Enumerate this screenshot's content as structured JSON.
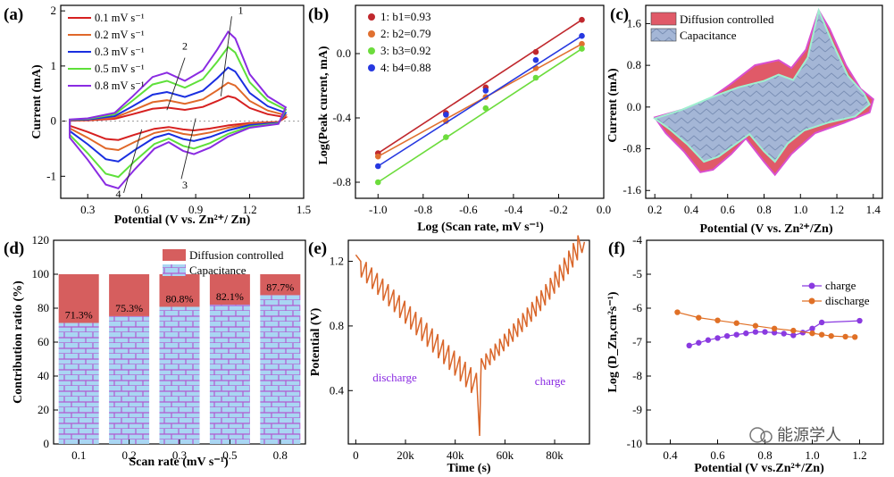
{
  "chart_data": [
    {
      "panel_label": "(a)",
      "type": "line",
      "xlabel": "Potential (V vs. Zn²⁺/ Zn)",
      "ylabel": "Current (mA)",
      "xlim": [
        0.15,
        1.5
      ],
      "ylim": [
        -1.4,
        2.1
      ],
      "x_ticks": [
        "0.3",
        "0.6",
        "0.9",
        "1.2",
        "1.5"
      ],
      "y_ticks": [
        "-1",
        "0",
        "1",
        "2"
      ],
      "legend": "top-left",
      "series": [
        {
          "name": "0.1 mV s⁻¹",
          "color": "#d62020",
          "scale": 0.28
        },
        {
          "name": "0.2 mV s⁻¹",
          "color": "#e0682a",
          "scale": 0.43
        },
        {
          "name": "0.3 mV s⁻¹",
          "color": "#1a2fe0",
          "scale": 0.6
        },
        {
          "name": "0.5 mV s⁻¹",
          "color": "#5ee03a",
          "scale": 0.83
        },
        {
          "name": "0.8 mV s⁻¹",
          "color": "#8a2be2",
          "scale": 1.0
        }
      ],
      "peak_labels": [
        "1",
        "2",
        "3",
        "4"
      ]
    },
    {
      "panel_label": "(b)",
      "type": "scatter",
      "xlabel": "Log (Scan rate, mV s⁻¹)",
      "ylabel": "Log(Peak curent, mA)",
      "xlim": [
        -1.1,
        0.0
      ],
      "ylim": [
        -0.9,
        0.3
      ],
      "x_ticks": [
        "-1.0",
        "-0.8",
        "-0.6",
        "-0.4",
        "-0.2",
        "0.0"
      ],
      "y_ticks": [
        "-0.8",
        "-0.4",
        "0.0"
      ],
      "legend": "top-left",
      "x": [
        -1.0,
        -0.699,
        -0.523,
        -0.301,
        -0.097
      ],
      "series": [
        {
          "name": "1: b1=0.93",
          "color": "#c0282d",
          "y": [
            -0.62,
            -0.37,
            -0.21,
            0.01,
            0.21
          ]
        },
        {
          "name": "2: b2=0.79",
          "color": "#e07030",
          "y": [
            -0.64,
            -0.42,
            -0.27,
            -0.09,
            0.06
          ]
        },
        {
          "name": "3: b3=0.92",
          "color": "#6cdc3c",
          "y": [
            -0.8,
            -0.52,
            -0.34,
            -0.15,
            0.03
          ]
        },
        {
          "name": "4: b4=0.88",
          "color": "#2638e0",
          "y": [
            -0.7,
            -0.38,
            -0.23,
            -0.04,
            0.11
          ]
        }
      ]
    },
    {
      "panel_label": "(c)",
      "type": "area",
      "xlabel": "Potential (V vs. Zn²⁺/Zn)",
      "ylabel": "Current (mA)",
      "xlim": [
        0.15,
        1.45
      ],
      "ylim": [
        -1.75,
        1.95
      ],
      "x_ticks": [
        "0.2",
        "0.4",
        "0.6",
        "0.8",
        "1.0",
        "1.2",
        "1.4"
      ],
      "y_ticks": [
        "-1.6",
        "-0.8",
        "0.0",
        "0.8",
        "1.6"
      ],
      "legend": "top",
      "series": [
        {
          "name": "Diffusion controlled",
          "color": "#e05a68"
        },
        {
          "name": "Capacitance",
          "color": "#9fb4d8"
        }
      ]
    },
    {
      "panel_label": "(d)",
      "type": "bar",
      "xlabel": "Scan rate (mV s⁻¹)",
      "ylabel": "Contribution ratio (%)",
      "ylim": [
        0,
        120
      ],
      "y_ticks": [
        "0",
        "20",
        "40",
        "60",
        "80",
        "100",
        "120"
      ],
      "categories": [
        "0.1",
        "0.2",
        "0.3",
        "0.5",
        "0.8"
      ],
      "legend": "top-right",
      "series": [
        {
          "name": "Diffusion controlled",
          "color": "#d65e5e",
          "values": [
            28.7,
            24.7,
            19.2,
            17.9,
            12.3
          ]
        },
        {
          "name": "Capacitance",
          "color": "#a9d6f3",
          "values": [
            71.3,
            75.3,
            80.8,
            82.1,
            87.7
          ]
        }
      ],
      "data_labels": [
        "71.3%",
        "75.3%",
        "80.8%",
        "82.1%",
        "87.7%"
      ]
    },
    {
      "panel_label": "(e)",
      "type": "line",
      "xlabel": "Time (s)",
      "ylabel": "Potential (V)",
      "xlim": [
        -3000,
        94000
      ],
      "ylim": [
        0.07,
        1.33
      ],
      "x_ticks": [
        "0",
        "20k",
        "40k",
        "60k",
        "80k"
      ],
      "y_ticks": [
        "0.4",
        "0.8",
        "1.2"
      ],
      "annotations": [
        "discharge",
        "charge"
      ],
      "series": [
        {
          "name": "",
          "color": "#d9662a"
        }
      ]
    },
    {
      "panel_label": "(f)",
      "type": "line",
      "xlabel": "Potential (V vs.Zn²⁺/Zn)",
      "ylabel": "Log (D_Zn,cm²s⁻¹)",
      "xlim": [
        0.3,
        1.3
      ],
      "ylim": [
        -10,
        -4
      ],
      "x_ticks": [
        "0.4",
        "0.6",
        "0.8",
        "1.0",
        "1.2"
      ],
      "y_ticks": [
        "-10",
        "-9",
        "-8",
        "-7",
        "-6",
        "-5",
        "-4"
      ],
      "legend": "top-right",
      "series": [
        {
          "name": "charge",
          "color": "#8a3ae0",
          "x": [
            0.48,
            0.52,
            0.56,
            0.6,
            0.64,
            0.68,
            0.72,
            0.76,
            0.8,
            0.84,
            0.88,
            0.92,
            0.96,
            1.0,
            1.04,
            1.2
          ],
          "y": [
            -7.1,
            -7.02,
            -6.94,
            -6.88,
            -6.82,
            -6.78,
            -6.74,
            -6.7,
            -6.7,
            -6.72,
            -6.75,
            -6.8,
            -6.72,
            -6.6,
            -6.42,
            -6.37
          ]
        },
        {
          "name": "discharge",
          "color": "#e07026",
          "x": [
            0.43,
            0.52,
            0.6,
            0.68,
            0.76,
            0.84,
            0.92,
            1.0,
            1.04,
            1.08,
            1.14,
            1.18
          ],
          "y": [
            -6.12,
            -6.28,
            -6.36,
            -6.44,
            -6.52,
            -6.6,
            -6.66,
            -6.74,
            -6.78,
            -6.82,
            -6.84,
            -6.85
          ]
        }
      ]
    }
  ],
  "watermark": "能源学人"
}
